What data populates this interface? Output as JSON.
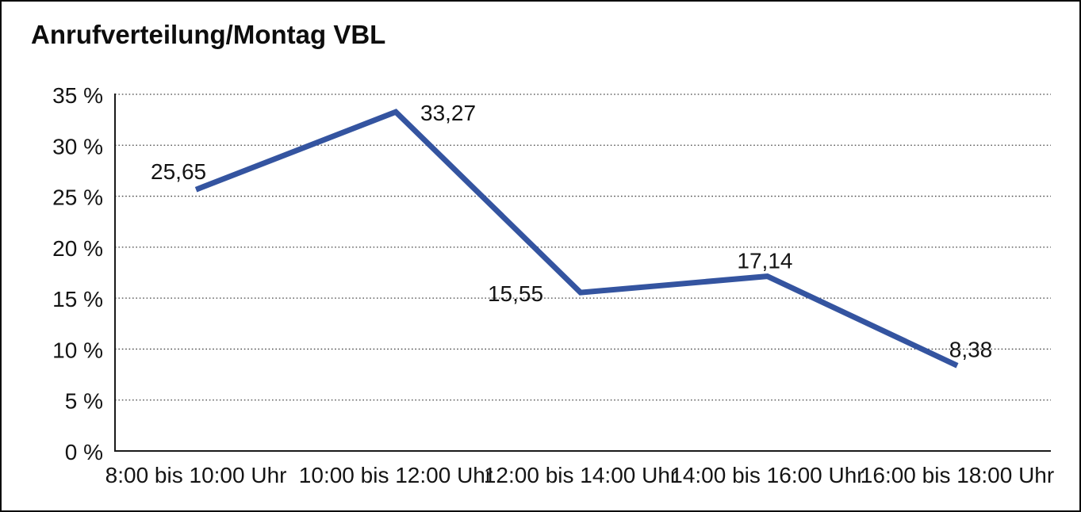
{
  "title": "Anrufverteilung/Montag VBL",
  "chart_data": {
    "type": "line",
    "title": "Anrufverteilung/Montag VBL",
    "categories": [
      "8:00 bis 10:00 Uhr",
      "10:00 bis 12:00 Uhr",
      "12:00 bis 14:00 Uhr",
      "14:00 bis 16:00 Uhr",
      "16:00 bis 18:00 Uhr"
    ],
    "values": [
      25.65,
      33.27,
      15.55,
      17.14,
      8.38
    ],
    "value_labels": [
      "25,65",
      "33,27",
      "15,55",
      "17,14",
      "8,38"
    ],
    "xlabel": "",
    "ylabel": "",
    "ylim": [
      0,
      35
    ],
    "ytick_step": 5,
    "ytick_labels": [
      "0 %",
      "5 %",
      "10 %",
      "15 %",
      "20 %",
      "25 %",
      "30 %",
      "35 %"
    ],
    "grid": "horizontal-dotted",
    "legend": "none"
  },
  "colors": {
    "series_line": "#3454A0",
    "text": "#141414",
    "grid_dots": "#454545",
    "axis": "#1a1a1a",
    "background": "#ffffff",
    "border": "#0a0a0a"
  }
}
